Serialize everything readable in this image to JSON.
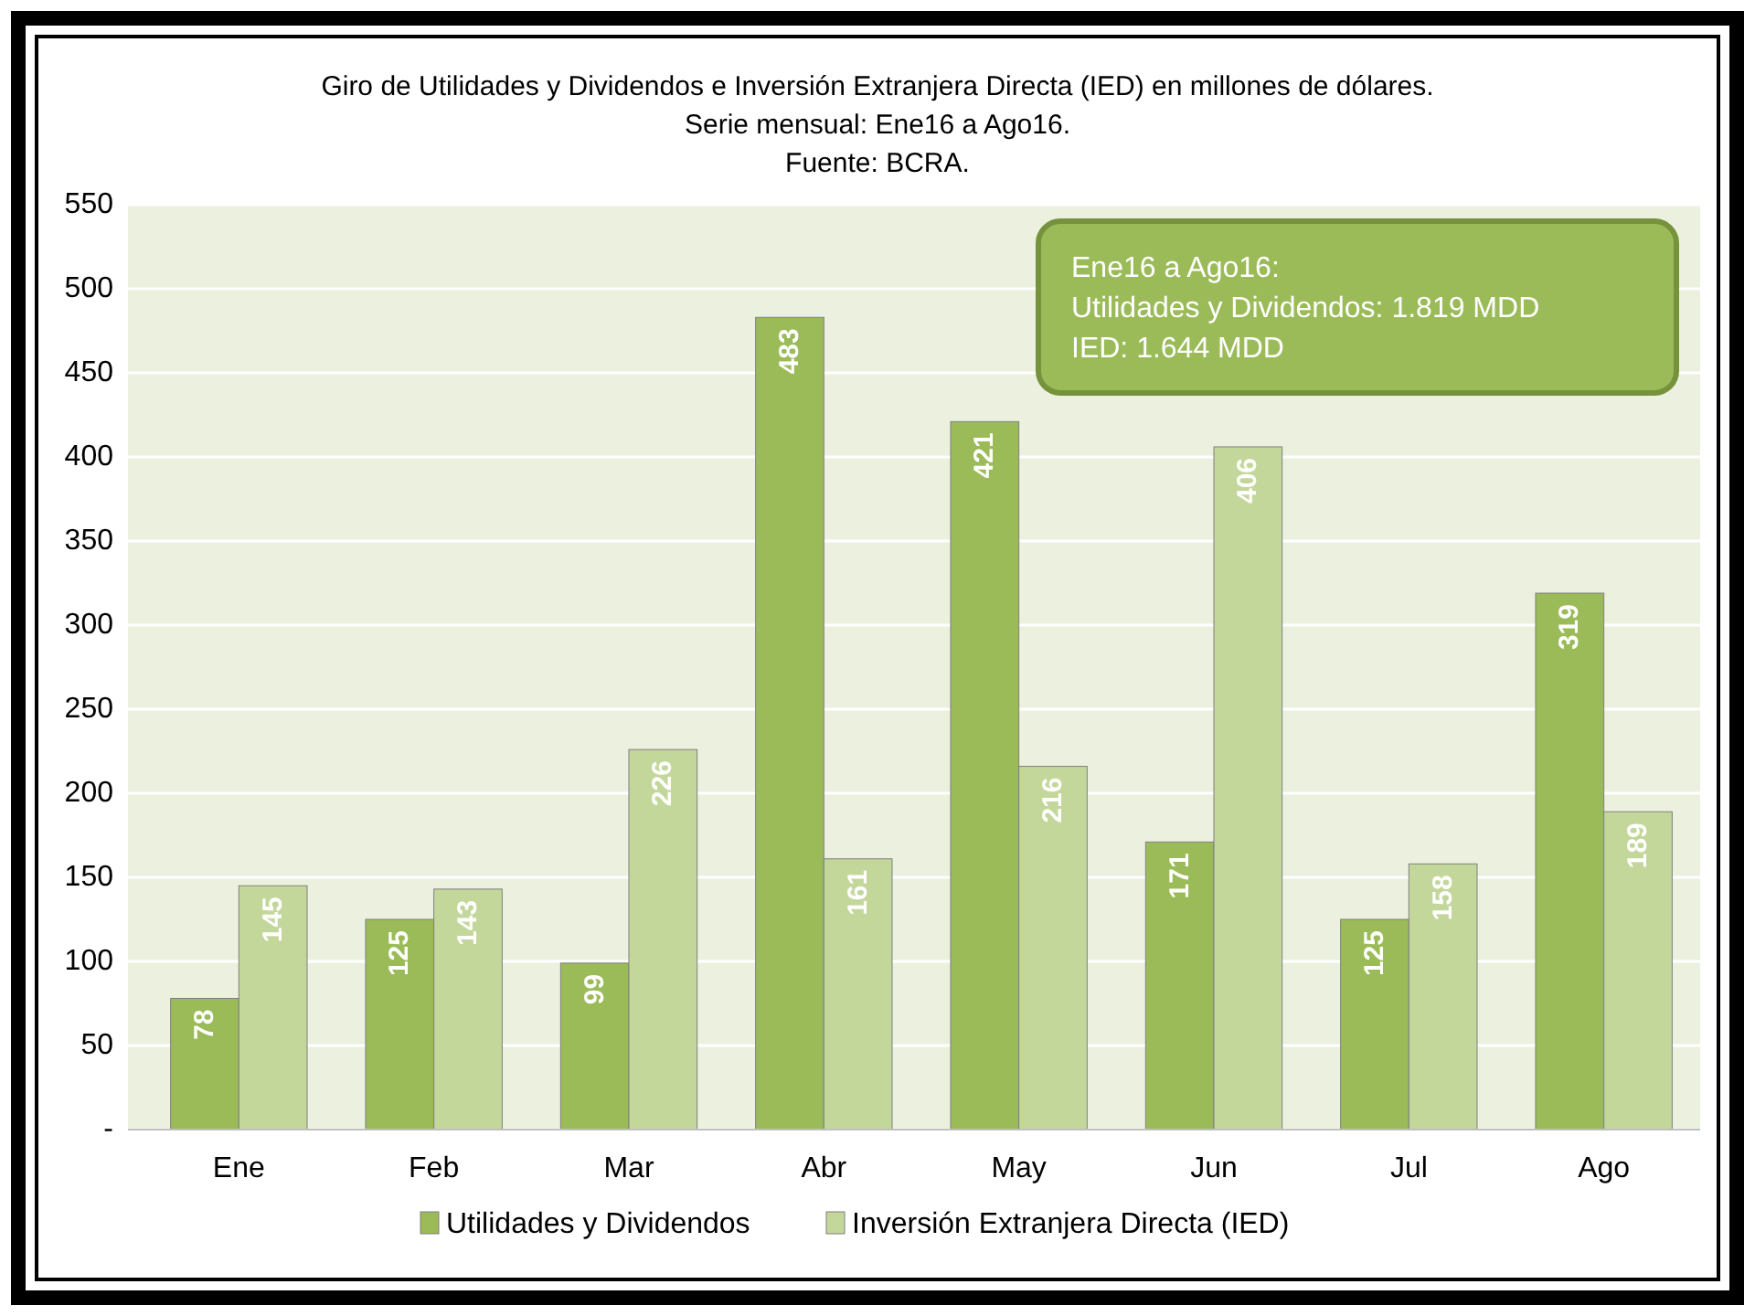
{
  "chart_data": {
    "type": "bar",
    "title": "Giro de Utilidades y Dividendos e Inversión Extranjera Directa (IED) en millones de dólares.",
    "subtitle": "Serie mensual: Ene16 a Ago16.\nFuente: BCRA.",
    "categories": [
      "Ene",
      "Feb",
      "Mar",
      "Abr",
      "May",
      "Jun",
      "Jul",
      "Ago"
    ],
    "series": [
      {
        "name": "Utilidades y Dividendos",
        "color": "#9bbb59",
        "values": [
          78,
          125,
          99,
          483,
          421,
          171,
          125,
          319
        ]
      },
      {
        "name": "Inversión Extranjera Directa (IED)",
        "color": "#c4d79b",
        "values": [
          145,
          143,
          226,
          161,
          216,
          406,
          158,
          189
        ]
      }
    ],
    "ylim": [
      0,
      550
    ],
    "yticks": [
      {
        "value": 0,
        "label": "-"
      },
      50,
      100,
      150,
      200,
      250,
      300,
      350,
      400,
      450,
      500,
      550
    ],
    "grid": "y",
    "legend": "bottom",
    "data_labels": true,
    "annotations": [
      "Ene16 a Ago16:\nUtilidades y Dividendos: 1.819 MDD\nIED: 1.644 MDD"
    ]
  }
}
